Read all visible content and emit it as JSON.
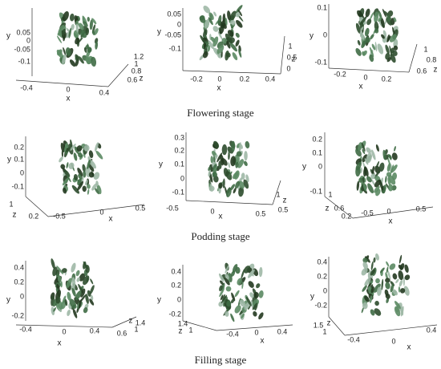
{
  "rows": [
    {
      "caption": "Flowering stage",
      "panels": [
        {
          "y_label": "y",
          "x_label": "x",
          "z_label": "z",
          "y_ticks": [
            "0.05",
            "0",
            "-0.05",
            "-0.1"
          ],
          "x_ticks": [
            "-0.4",
            "0",
            "0.4"
          ],
          "z_ticks": [
            "1.2",
            "1",
            "0.8",
            "0.6"
          ]
        },
        {
          "y_label": "y",
          "x_label": "x",
          "z_label": "z",
          "y_ticks": [
            "0.05",
            "0",
            "-0.05",
            "-0.1"
          ],
          "x_ticks": [
            "-0.2",
            "0",
            "0.2",
            "0.4"
          ],
          "z_ticks": [
            "1",
            "0.5",
            "0"
          ]
        },
        {
          "y_label": "y",
          "x_label": "x",
          "z_label": "z",
          "y_ticks": [
            "0.1",
            "0",
            "-0.1"
          ],
          "x_ticks": [
            "-0.2",
            "0",
            "0.2"
          ],
          "z_ticks": [
            "1",
            "0.8",
            "0.6"
          ]
        }
      ]
    },
    {
      "caption": "Podding stage",
      "panels": [
        {
          "y_label": "y",
          "x_label": "x",
          "z_label": "z",
          "y_ticks": [
            "0.2",
            "0.1",
            "0",
            "-0.1"
          ],
          "x_ticks": [
            "-0.5",
            "0",
            "0.5"
          ],
          "z_ticks": [
            "1",
            "0.2"
          ]
        },
        {
          "y_label": "y",
          "x_label": "x",
          "z_label": "z",
          "y_ticks": [
            "0.3",
            "0.2",
            "0.1",
            "0",
            "-0.1"
          ],
          "x_ticks": [
            "-0.5",
            "0",
            "0.5"
          ],
          "z_ticks": [
            "1",
            "0.5"
          ]
        },
        {
          "y_label": "y",
          "x_label": "x",
          "z_label": "z",
          "y_ticks": [
            "0.2",
            "0.1",
            "0",
            "-0.1"
          ],
          "x_ticks": [
            "-0.5",
            "0",
            "0.5"
          ],
          "z_ticks": [
            "1",
            "0.6",
            "0.2"
          ]
        }
      ]
    },
    {
      "caption": "Filling stage",
      "panels": [
        {
          "y_label": "y",
          "x_label": "x",
          "z_label": "z",
          "y_ticks": [
            "0.4",
            "0.2",
            "0",
            "-0.2"
          ],
          "x_ticks": [
            "-0.4",
            "0",
            "0.4"
          ],
          "z_ticks": [
            "1.4",
            "1",
            "0.6"
          ]
        },
        {
          "y_label": "y",
          "x_label": "x",
          "z_label": "z",
          "y_ticks": [
            "0.4",
            "0.2",
            "0",
            "-0.2"
          ],
          "x_ticks": [
            "-0.4",
            "0",
            "0.4"
          ],
          "z_ticks": [
            "1.4",
            "1"
          ]
        },
        {
          "y_label": "y",
          "x_label": "x",
          "z_label": "z",
          "y_ticks": [
            "0.4",
            "0.2",
            "0",
            "-0.2"
          ],
          "x_ticks": [
            "-0.4",
            "0",
            "0.4"
          ],
          "z_ticks": [
            "1.5",
            "1"
          ]
        }
      ]
    }
  ]
}
